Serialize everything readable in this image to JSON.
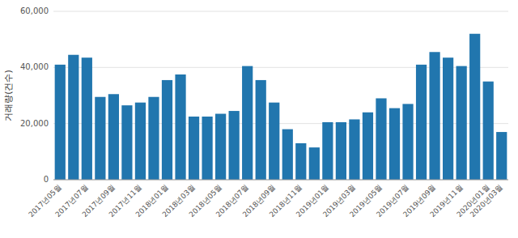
{
  "chart_data": {
    "type": "bar",
    "ylabel": "거래량(건수)",
    "categories": [
      "2017년05월",
      null,
      "2017년07월",
      null,
      "2017년09월",
      null,
      "2017년11월",
      null,
      "2018년01월",
      null,
      "2018년03월",
      null,
      "2018년05월",
      null,
      "2018년07월",
      null,
      "2018년09월",
      null,
      "2018년11월",
      null,
      "2019년01월",
      null,
      "2019년03월",
      null,
      "2019년05월",
      null,
      "2019년07월",
      null,
      "2019년09월",
      null,
      "2019년11월",
      null,
      "2020년01월",
      "2020년03월"
    ],
    "values": [
      41000,
      44500,
      43500,
      29500,
      30500,
      26500,
      27500,
      29500,
      35500,
      37500,
      22500,
      22500,
      23500,
      24500,
      40500,
      35500,
      27500,
      18000,
      13000,
      11500,
      20500,
      20500,
      21500,
      24000,
      29000,
      25500,
      27000,
      41000,
      45500,
      43500,
      40500,
      52000,
      35000,
      17000
    ],
    "color": "#2176ae",
    "ylim": [
      0,
      60000
    ],
    "yticks": [
      0,
      {
        "value": 20000,
        "label": "20,000"
      },
      {
        "value": 40000,
        "label": "40,000"
      },
      {
        "value": 60000,
        "label": "60,000"
      }
    ],
    "grid": true
  }
}
